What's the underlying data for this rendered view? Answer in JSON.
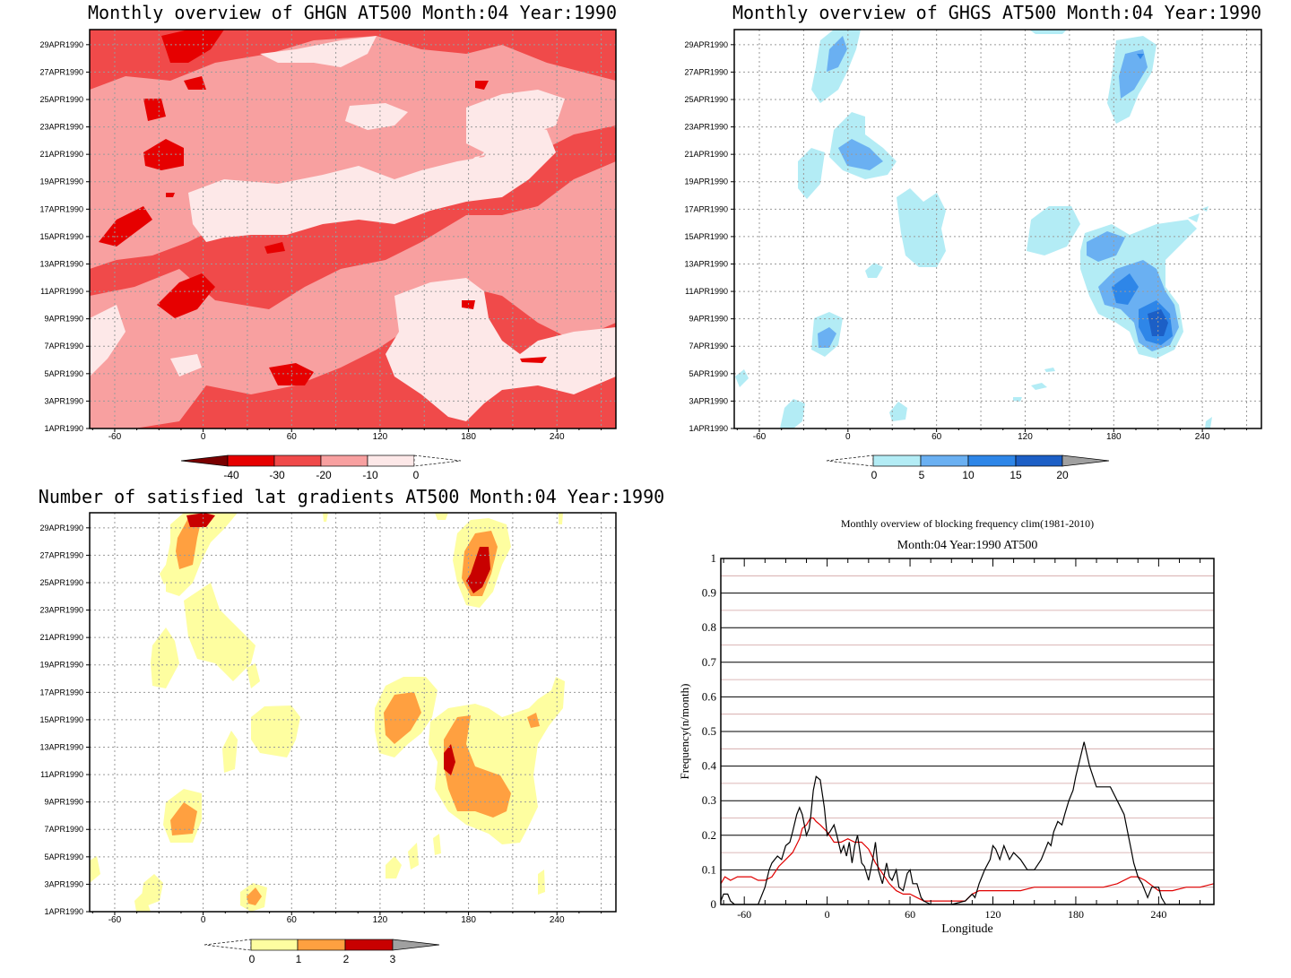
{
  "colors": {
    "red": [
      "#7a0000",
      "#e60000",
      "#f04a4a",
      "#f8a0a0",
      "#fde8e8"
    ],
    "blue": [
      "#b3ecf5",
      "#6ab0f2",
      "#2e86e8",
      "#1c5fc6"
    ],
    "yellow": [
      "#fefea0",
      "#ffa040",
      "#c80000"
    ],
    "clim_line": "#e00000",
    "freq_line": "#000000",
    "grid_minor": "#d0a0a0"
  },
  "chart_data": [
    {
      "type": "heatmap",
      "title": "Monthly overview of GHGN AT500 Month:04 Year:1990",
      "x_ticks": [
        "-60",
        "0",
        "60",
        "120",
        "180",
        "240"
      ],
      "xlim": [
        -77,
        280
      ],
      "y_ticks": [
        "1APR1990",
        "3APR1990",
        "5APR1990",
        "7APR1990",
        "9APR1990",
        "11APR1990",
        "13APR1990",
        "15APR1990",
        "17APR1990",
        "19APR1990",
        "21APR1990",
        "23APR1990",
        "25APR1990",
        "27APR1990",
        "29APR1990"
      ],
      "colorbar": {
        "labels": [
          "-40",
          "-30",
          "-20",
          "-10",
          "0"
        ],
        "extend": "min"
      }
    },
    {
      "type": "heatmap",
      "title": "Monthly overview of GHGS AT500 Month:04 Year:1990",
      "x_ticks": [
        "-60",
        "0",
        "60",
        "120",
        "180",
        "240"
      ],
      "xlim": [
        -77,
        280
      ],
      "y_ticks": [
        "1APR1990",
        "3APR1990",
        "5APR1990",
        "7APR1990",
        "9APR1990",
        "11APR1990",
        "13APR1990",
        "15APR1990",
        "17APR1990",
        "19APR1990",
        "21APR1990",
        "23APR1990",
        "25APR1990",
        "27APR1990",
        "29APR1990"
      ],
      "colorbar": {
        "labels": [
          "0",
          "5",
          "10",
          "15",
          "20"
        ],
        "extend": "max"
      }
    },
    {
      "type": "heatmap",
      "title": "Number of satisfied lat gradients AT500 Month:04 Year:1990",
      "x_ticks": [
        "-60",
        "0",
        "60",
        "120",
        "180",
        "240"
      ],
      "xlim": [
        -77,
        280
      ],
      "y_ticks": [
        "1APR1990",
        "3APR1990",
        "5APR1990",
        "7APR1990",
        "9APR1990",
        "11APR1990",
        "13APR1990",
        "15APR1990",
        "17APR1990",
        "19APR1990",
        "21APR1990",
        "23APR1990",
        "25APR1990",
        "27APR1990",
        "29APR1990"
      ],
      "colorbar": {
        "labels": [
          "0",
          "1",
          "2",
          "3"
        ],
        "extend": "both"
      }
    },
    {
      "type": "line",
      "title": "Monthly overview of blocking frequency clim(1981-2010)",
      "subtitle": "Month:04 Year:1990  AT500",
      "xlabel": "Longitude",
      "ylabel": "Frequency(n/month)",
      "xlim": [
        -77,
        280
      ],
      "ylim": [
        0,
        1
      ],
      "x_ticks": [
        "-60",
        "0",
        "60",
        "120",
        "180",
        "240"
      ],
      "y_ticks": [
        "0",
        "0.1",
        "0.2",
        "0.3",
        "0.4",
        "0.5",
        "0.6",
        "0.7",
        "0.8",
        "0.9",
        "1"
      ],
      "series": [
        {
          "x": [
            -77,
            -75,
            -72,
            -70,
            -67,
            -60,
            -50,
            -45,
            -42,
            -40,
            -36,
            -33,
            -30,
            -27,
            -25,
            -22,
            -20,
            -18,
            -15,
            -13,
            -12,
            -10,
            -8,
            -5,
            -2,
            0,
            2,
            5,
            7,
            10,
            12,
            14,
            16,
            18,
            20,
            22,
            25,
            27,
            30,
            33,
            35,
            37,
            40,
            43,
            45,
            47,
            50,
            52,
            55,
            58,
            60,
            62,
            65,
            68,
            70,
            75,
            80,
            90,
            100,
            105,
            107,
            110,
            112,
            114,
            118,
            120,
            122,
            125,
            128,
            130,
            132,
            135,
            140,
            145,
            150,
            155,
            160,
            162,
            164,
            167,
            170,
            172,
            175,
            178,
            180,
            183,
            186,
            190,
            195,
            200,
            205,
            210,
            215,
            218,
            220,
            222,
            225,
            228,
            232,
            235,
            240,
            242,
            245,
            250,
            255,
            260,
            265,
            270,
            275,
            280
          ],
          "y": [
            0.01,
            0.03,
            0.03,
            0.01,
            0,
            0,
            0,
            0.05,
            0.1,
            0.12,
            0.14,
            0.13,
            0.17,
            0.18,
            0.21,
            0.26,
            0.28,
            0.26,
            0.2,
            0.22,
            0.25,
            0.33,
            0.37,
            0.36,
            0.28,
            0.2,
            0.21,
            0.23,
            0.2,
            0.15,
            0.17,
            0.14,
            0.18,
            0.12,
            0.17,
            0.2,
            0.12,
            0.11,
            0.07,
            0.13,
            0.18,
            0.1,
            0.06,
            0.12,
            0.08,
            0.07,
            0.1,
            0.05,
            0.04,
            0.09,
            0.1,
            0.06,
            0.06,
            0.02,
            0.01,
            0,
            0,
            0,
            0.01,
            0.03,
            0.02,
            0.06,
            0.08,
            0.1,
            0.13,
            0.17,
            0.16,
            0.13,
            0.17,
            0.15,
            0.13,
            0.15,
            0.13,
            0.1,
            0.1,
            0.13,
            0.18,
            0.17,
            0.21,
            0.24,
            0.23,
            0.26,
            0.3,
            0.33,
            0.37,
            0.42,
            0.47,
            0.4,
            0.34,
            0.34,
            0.34,
            0.3,
            0.26,
            0.2,
            0.16,
            0.12,
            0.08,
            0.06,
            0.02,
            0.05,
            0.05,
            0.02,
            0.0,
            0,
            0,
            0,
            0,
            0,
            0,
            0
          ]
        },
        {
          "x": [
            -77,
            -74,
            -70,
            -65,
            -60,
            -55,
            -50,
            -45,
            -40,
            -35,
            -30,
            -25,
            -20,
            -18,
            -15,
            -12,
            -10,
            -8,
            -5,
            0,
            5,
            10,
            15,
            20,
            25,
            30,
            35,
            40,
            45,
            50,
            55,
            60,
            65,
            70,
            80,
            90,
            100,
            105,
            110,
            120,
            130,
            140,
            150,
            160,
            170,
            180,
            190,
            200,
            210,
            220,
            225,
            230,
            240,
            250,
            260,
            270,
            280
          ],
          "y": [
            0.06,
            0.08,
            0.07,
            0.08,
            0.08,
            0.08,
            0.07,
            0.07,
            0.08,
            0.11,
            0.13,
            0.15,
            0.19,
            0.22,
            0.23,
            0.25,
            0.25,
            0.24,
            0.23,
            0.21,
            0.18,
            0.18,
            0.19,
            0.18,
            0.18,
            0.16,
            0.12,
            0.09,
            0.06,
            0.04,
            0.03,
            0.03,
            0.02,
            0.01,
            0.01,
            0.01,
            0.01,
            0.03,
            0.04,
            0.04,
            0.04,
            0.04,
            0.05,
            0.05,
            0.05,
            0.05,
            0.05,
            0.05,
            0.06,
            0.08,
            0.08,
            0.07,
            0.04,
            0.04,
            0.05,
            0.05,
            0.06
          ]
        }
      ]
    }
  ]
}
